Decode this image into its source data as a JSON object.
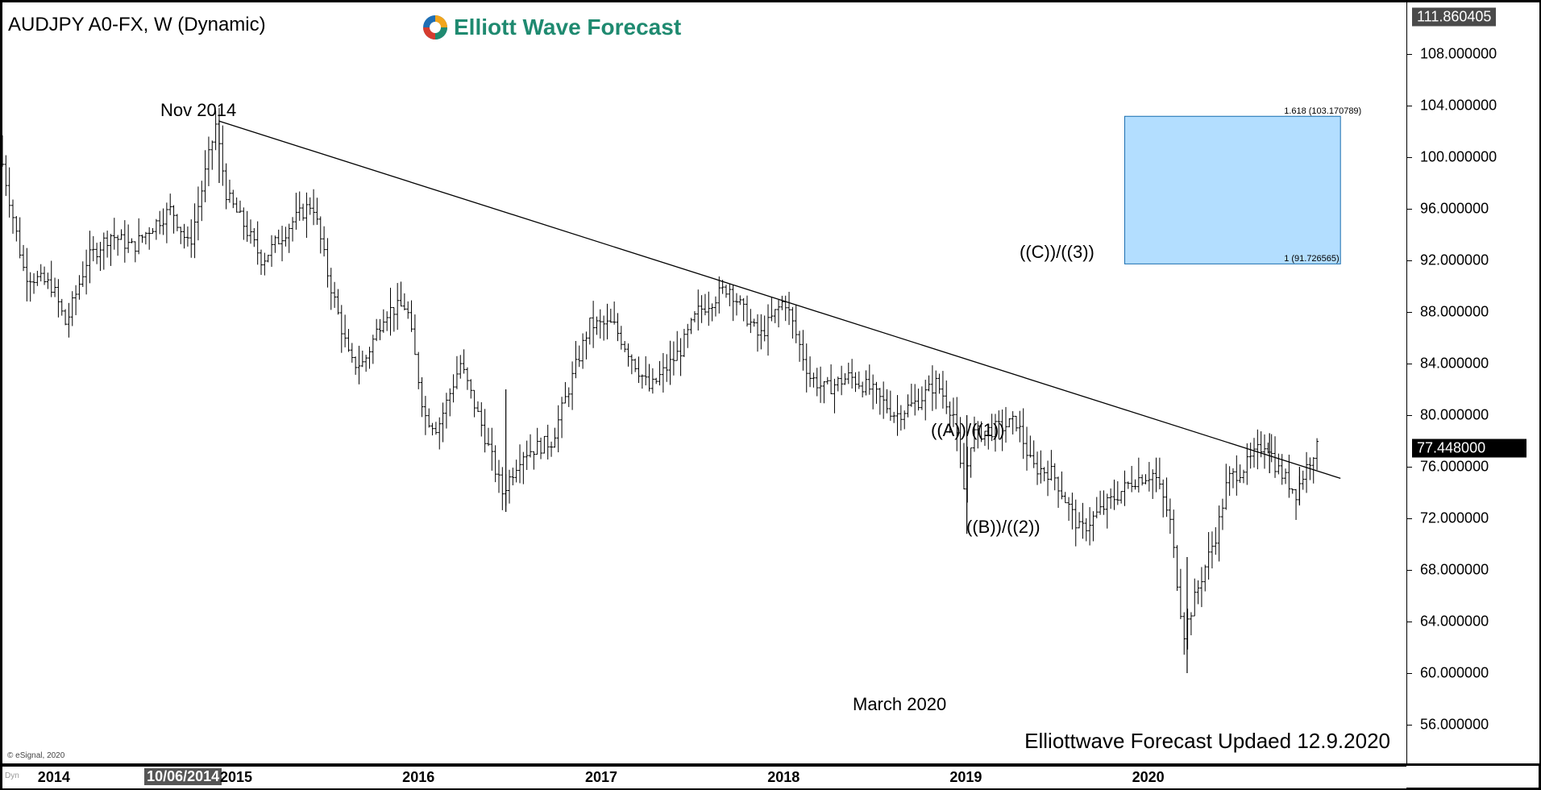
{
  "title": "AUDJPY A0-FX, W (Dynamic)",
  "logo_text": "Elliott Wave Forecast",
  "footer": "Elliottwave Forecast Updaed 12.9.2020",
  "esignal": "© eSignal, 2020",
  "dyn_label": "Dyn",
  "annotations": {
    "nov2014": "Nov 2014",
    "march2020": "March 2020",
    "wave_a1": "((A))/((1))",
    "wave_b2": "((B))/((2))",
    "wave_c3": "((C))/((3))"
  },
  "fib": {
    "upper_label": "1.618 (103.170789)",
    "lower_label": "1 (91.726565)",
    "upper": 103.170789,
    "lower": 91.726565,
    "start_date": "2019-11-15",
    "end_date": "2021-01-20",
    "color": "#b3deff"
  },
  "price_boxes": {
    "top": "111.860405",
    "current": "77.448000"
  },
  "date_cursor": "10/06/2014",
  "chart_data": {
    "type": "ohlc-bar",
    "symbol": "AUDJPY",
    "interval": "W",
    "ylim": [
      53,
      112
    ],
    "xlim": [
      "2013-09-20",
      "2021-06-01"
    ],
    "y_ticks": [
      "56.000000",
      "60.000000",
      "64.000000",
      "68.000000",
      "72.000000",
      "76.000000",
      "80.000000",
      "84.000000",
      "88.000000",
      "92.000000",
      "96.000000",
      "100.000000",
      "104.000000",
      "108.000000"
    ],
    "x_ticks": [
      {
        "label": "2014",
        "date": "2014-01-01"
      },
      {
        "label": "2015",
        "date": "2015-01-01"
      },
      {
        "label": "2016",
        "date": "2016-01-01"
      },
      {
        "label": "2017",
        "date": "2017-01-01"
      },
      {
        "label": "2018",
        "date": "2018-01-01"
      },
      {
        "label": "2019",
        "date": "2019-01-01"
      },
      {
        "label": "2020",
        "date": "2020-01-01"
      }
    ],
    "trendline": {
      "start": {
        "date": "2014-11-28",
        "price": 102.8
      },
      "end": {
        "date": "2021-01-20",
        "price": 75.1
      }
    },
    "price_path": [
      {
        "date": "2013-09-20",
        "price": 100.8
      },
      {
        "date": "2013-10-15",
        "price": 96
      },
      {
        "date": "2013-11-10",
        "price": 91
      },
      {
        "date": "2014-01-05",
        "price": 90
      },
      {
        "date": "2014-02-01",
        "price": 87
      },
      {
        "date": "2014-03-15",
        "price": 92
      },
      {
        "date": "2014-05-01",
        "price": 94
      },
      {
        "date": "2014-06-15",
        "price": 93
      },
      {
        "date": "2014-07-20",
        "price": 94.5
      },
      {
        "date": "2014-09-01",
        "price": 96
      },
      {
        "date": "2014-10-06",
        "price": 93
      },
      {
        "date": "2014-11-28",
        "price": 102.5
      },
      {
        "date": "2014-12-20",
        "price": 97
      },
      {
        "date": "2015-01-20",
        "price": 95
      },
      {
        "date": "2015-03-01",
        "price": 92
      },
      {
        "date": "2015-05-01",
        "price": 95
      },
      {
        "date": "2015-06-10",
        "price": 96.5
      },
      {
        "date": "2015-07-10",
        "price": 91
      },
      {
        "date": "2015-08-25",
        "price": 84
      },
      {
        "date": "2015-09-20",
        "price": 84
      },
      {
        "date": "2015-11-01",
        "price": 88
      },
      {
        "date": "2015-12-15",
        "price": 88.5
      },
      {
        "date": "2016-01-20",
        "price": 80
      },
      {
        "date": "2016-02-15",
        "price": 79
      },
      {
        "date": "2016-04-01",
        "price": 84
      },
      {
        "date": "2016-05-15",
        "price": 79
      },
      {
        "date": "2016-06-24",
        "price": 74
      },
      {
        "date": "2016-08-01",
        "price": 77
      },
      {
        "date": "2016-10-01",
        "price": 78
      },
      {
        "date": "2016-11-20",
        "price": 84
      },
      {
        "date": "2016-12-15",
        "price": 87
      },
      {
        "date": "2017-02-01",
        "price": 87
      },
      {
        "date": "2017-04-15",
        "price": 82
      },
      {
        "date": "2017-06-15",
        "price": 85
      },
      {
        "date": "2017-07-20",
        "price": 88
      },
      {
        "date": "2017-09-20",
        "price": 90
      },
      {
        "date": "2017-11-20",
        "price": 86
      },
      {
        "date": "2018-01-10",
        "price": 89
      },
      {
        "date": "2018-03-01",
        "price": 83
      },
      {
        "date": "2018-04-01",
        "price": 82
      },
      {
        "date": "2018-05-20",
        "price": 83
      },
      {
        "date": "2018-07-01",
        "price": 82
      },
      {
        "date": "2018-08-20",
        "price": 80
      },
      {
        "date": "2018-10-01",
        "price": 81
      },
      {
        "date": "2018-11-10",
        "price": 82.5
      },
      {
        "date": "2018-12-15",
        "price": 80
      },
      {
        "date": "2019-01-03",
        "price": 74
      },
      {
        "date": "2019-01-20",
        "price": 78.5
      },
      {
        "date": "2019-03-15",
        "price": 79
      },
      {
        "date": "2019-04-20",
        "price": 79.5
      },
      {
        "date": "2019-05-20",
        "price": 76
      },
      {
        "date": "2019-07-01",
        "price": 75.5
      },
      {
        "date": "2019-08-25",
        "price": 71
      },
      {
        "date": "2019-10-15",
        "price": 73
      },
      {
        "date": "2019-12-10",
        "price": 75
      },
      {
        "date": "2020-01-20",
        "price": 75.5
      },
      {
        "date": "2020-02-20",
        "price": 72
      },
      {
        "date": "2020-03-19",
        "price": 63
      },
      {
        "date": "2020-04-20",
        "price": 67
      },
      {
        "date": "2020-05-25",
        "price": 71
      },
      {
        "date": "2020-06-15",
        "price": 75
      },
      {
        "date": "2020-07-20",
        "price": 76
      },
      {
        "date": "2020-08-31",
        "price": 78
      },
      {
        "date": "2020-09-20",
        "price": 76
      },
      {
        "date": "2020-10-30",
        "price": 74
      },
      {
        "date": "2020-11-20",
        "price": 76
      },
      {
        "date": "2020-12-07",
        "price": 77.4
      }
    ]
  }
}
